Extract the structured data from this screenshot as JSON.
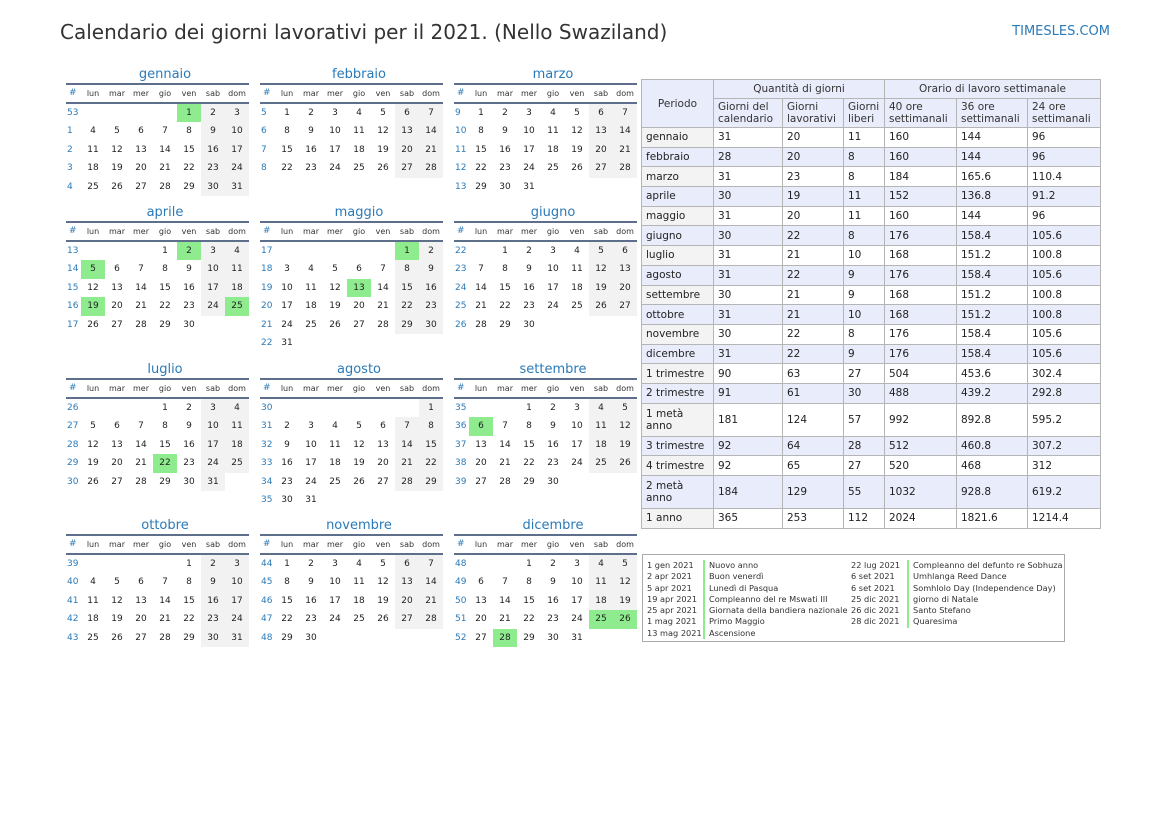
{
  "title": "Calendario dei giorni lavorativi per il 2021. (Nello Swaziland)",
  "site": "TIMESLES.COM",
  "weekday_headers": [
    "#",
    "lun",
    "mar",
    "mer",
    "gio",
    "ven",
    "sab",
    "dom"
  ],
  "months": [
    {
      "name": "gennaio",
      "start": 4,
      "days": 31,
      "firstWeek": 53,
      "holidays": [
        1
      ]
    },
    {
      "name": "febbraio",
      "start": 0,
      "days": 28,
      "firstWeek": 5,
      "holidays": []
    },
    {
      "name": "marzo",
      "start": 0,
      "days": 31,
      "firstWeek": 9,
      "holidays": []
    },
    {
      "name": "aprile",
      "start": 3,
      "days": 30,
      "firstWeek": 13,
      "holidays": [
        2,
        5,
        19,
        25
      ]
    },
    {
      "name": "maggio",
      "start": 5,
      "days": 31,
      "firstWeek": 17,
      "holidays": [
        1,
        13
      ]
    },
    {
      "name": "giugno",
      "start": 1,
      "days": 30,
      "firstWeek": 22,
      "holidays": []
    },
    {
      "name": "luglio",
      "start": 3,
      "days": 31,
      "firstWeek": 26,
      "holidays": [
        22
      ]
    },
    {
      "name": "agosto",
      "start": 6,
      "days": 31,
      "firstWeek": 30,
      "holidays": []
    },
    {
      "name": "settembre",
      "start": 2,
      "days": 30,
      "firstWeek": 35,
      "holidays": [
        6
      ]
    },
    {
      "name": "ottobre",
      "start": 4,
      "days": 31,
      "firstWeek": 39,
      "holidays": []
    },
    {
      "name": "novembre",
      "start": 0,
      "days": 30,
      "firstWeek": 44,
      "holidays": []
    },
    {
      "name": "dicembre",
      "start": 2,
      "days": 31,
      "firstWeek": 48,
      "holidays": [
        25,
        26,
        28
      ]
    }
  ],
  "summary": {
    "periodo": "Periodo",
    "group1": "Quantità di giorni",
    "group2": "Orario di lavoro settimanale",
    "columns": [
      "Giorni del calendario",
      "Giorni lavorativi",
      "Giorni liberi",
      "40 ore settimanali",
      "36 ore settimanali",
      "24 ore settimanali"
    ],
    "rows": [
      [
        "gennaio",
        "31",
        "20",
        "11",
        "160",
        "144",
        "96"
      ],
      [
        "febbraio",
        "28",
        "20",
        "8",
        "160",
        "144",
        "96"
      ],
      [
        "marzo",
        "31",
        "23",
        "8",
        "184",
        "165.6",
        "110.4"
      ],
      [
        "aprile",
        "30",
        "19",
        "11",
        "152",
        "136.8",
        "91.2"
      ],
      [
        "maggio",
        "31",
        "20",
        "11",
        "160",
        "144",
        "96"
      ],
      [
        "giugno",
        "30",
        "22",
        "8",
        "176",
        "158.4",
        "105.6"
      ],
      [
        "luglio",
        "31",
        "21",
        "10",
        "168",
        "151.2",
        "100.8"
      ],
      [
        "agosto",
        "31",
        "22",
        "9",
        "176",
        "158.4",
        "105.6"
      ],
      [
        "settembre",
        "30",
        "21",
        "9",
        "168",
        "151.2",
        "100.8"
      ],
      [
        "ottobre",
        "31",
        "21",
        "10",
        "168",
        "151.2",
        "100.8"
      ],
      [
        "novembre",
        "30",
        "22",
        "8",
        "176",
        "158.4",
        "105.6"
      ],
      [
        "dicembre",
        "31",
        "22",
        "9",
        "176",
        "158.4",
        "105.6"
      ],
      [
        "1 trimestre",
        "90",
        "63",
        "27",
        "504",
        "453.6",
        "302.4"
      ],
      [
        "2 trimestre",
        "91",
        "61",
        "30",
        "488",
        "439.2",
        "292.8"
      ],
      [
        "1 metà anno",
        "181",
        "124",
        "57",
        "992",
        "892.8",
        "595.2"
      ],
      [
        "3 trimestre",
        "92",
        "64",
        "28",
        "512",
        "460.8",
        "307.2"
      ],
      [
        "4 trimestre",
        "92",
        "65",
        "27",
        "520",
        "468",
        "312"
      ],
      [
        "2 metà anno",
        "184",
        "129",
        "55",
        "1032",
        "928.8",
        "619.2"
      ],
      [
        "1 anno",
        "365",
        "253",
        "112",
        "2024",
        "1821.6",
        "1214.4"
      ]
    ]
  },
  "holiday_list": [
    [
      {
        "date": "1 gen 2021",
        "name": "Nuovo anno"
      },
      {
        "date": "2 apr 2021",
        "name": "Buon venerdì"
      },
      {
        "date": "5 apr 2021",
        "name": "Lunedì di Pasqua"
      },
      {
        "date": "19 apr 2021",
        "name": "Compleanno del re Mswati III"
      },
      {
        "date": "25 apr 2021",
        "name": "Giornata della bandiera nazionale"
      },
      {
        "date": "1 mag 2021",
        "name": "Primo Maggio"
      },
      {
        "date": "13 mag 2021",
        "name": "Ascensione"
      }
    ],
    [
      {
        "date": "22 lug 2021",
        "name": "Compleanno del defunto re Sobhuza"
      },
      {
        "date": "6 set 2021",
        "name": "Umhlanga Reed Dance"
      },
      {
        "date": "6 set 2021",
        "name": "Somhlolo Day (Independence Day)"
      },
      {
        "date": "25 dic 2021",
        "name": "giorno di Natale"
      },
      {
        "date": "26 dic 2021",
        "name": "Santo Stefano"
      },
      {
        "date": "28 dic 2021",
        "name": "Quaresima"
      }
    ]
  ],
  "colors": {
    "holiday": "#8eec8e",
    "weekend": "#f2f2f2",
    "accent": "#2a7ab8",
    "rule": "#5d6f8b"
  }
}
